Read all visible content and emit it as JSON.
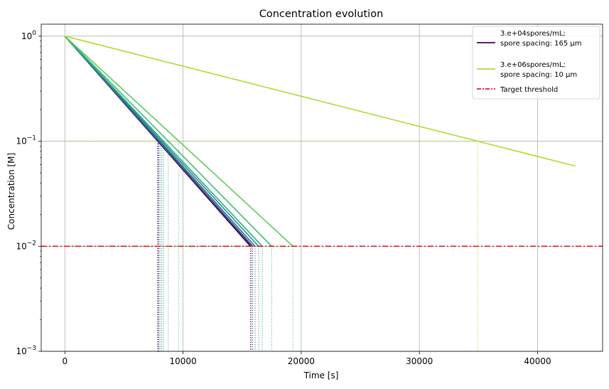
{
  "chart_data": {
    "type": "line",
    "title": "Concentration evolution",
    "xlabel": "Time [s]",
    "ylabel": "Concentration [M]",
    "xlim": [
      -2000,
      45500
    ],
    "ylim": [
      0.001,
      1.3
    ],
    "yscale": "log",
    "grid": true,
    "x_ticks": [
      0,
      10000,
      20000,
      30000,
      40000
    ],
    "x_tick_labels": [
      "0",
      "10000",
      "20000",
      "30000",
      "40000"
    ],
    "y_ticks": [
      0.001,
      0.01,
      0.1,
      1
    ],
    "y_tick_labels": [
      {
        "base": "10",
        "exp": "−3"
      },
      {
        "base": "10",
        "exp": "−2"
      },
      {
        "base": "10",
        "exp": "−1"
      },
      {
        "base": "10",
        "exp": "0"
      }
    ],
    "threshold": {
      "name": "Target threshold",
      "value": 0.01,
      "color": "#e31a1c"
    },
    "intermediate_level": 0.1,
    "series": [
      {
        "name": "3.e+04spores/mL; spore spacing: 165 μm",
        "color": "#440154",
        "x": [
          0,
          15700
        ],
        "y": [
          1.0,
          0.01
        ]
      },
      {
        "name": "",
        "color": "#472d7b",
        "x": [
          0,
          15800
        ],
        "y": [
          1.0,
          0.01
        ]
      },
      {
        "name": "",
        "color": "#3b528b",
        "x": [
          0,
          15900
        ],
        "y": [
          1.0,
          0.01
        ]
      },
      {
        "name": "",
        "color": "#2c728e",
        "x": [
          0,
          16100
        ],
        "y": [
          1.0,
          0.01
        ]
      },
      {
        "name": "",
        "color": "#21918c",
        "x": [
          0,
          16400
        ],
        "y": [
          1.0,
          0.01
        ]
      },
      {
        "name": "",
        "color": "#28ae80",
        "x": [
          0,
          16700
        ],
        "y": [
          1.0,
          0.01
        ]
      },
      {
        "name": "",
        "color": "#3dbc74",
        "x": [
          0,
          17500
        ],
        "y": [
          1.0,
          0.01
        ]
      },
      {
        "name": "",
        "color": "#5ec962",
        "x": [
          0,
          19300
        ],
        "y": [
          1.0,
          0.01
        ]
      },
      {
        "name": "3.e+06spores/mL; spore spacing: 10 μm",
        "color": "#addc30",
        "x": [
          0,
          43200
        ],
        "y": [
          1.0,
          0.058
        ]
      }
    ],
    "legend": {
      "placement": "top-right",
      "entries": [
        {
          "label_lines": [
            "3.e+04spores/mL;",
            "spore spacing: 165 μm"
          ],
          "color": "#440154",
          "style": "solid"
        },
        {
          "label_lines": [
            "3.e+06spores/mL;",
            "spore spacing: 10 μm"
          ],
          "color": "#addc30",
          "style": "solid"
        },
        {
          "label_lines": [
            "Target threshold"
          ],
          "color": "#e31a1c",
          "style": "dashdot"
        }
      ]
    }
  }
}
